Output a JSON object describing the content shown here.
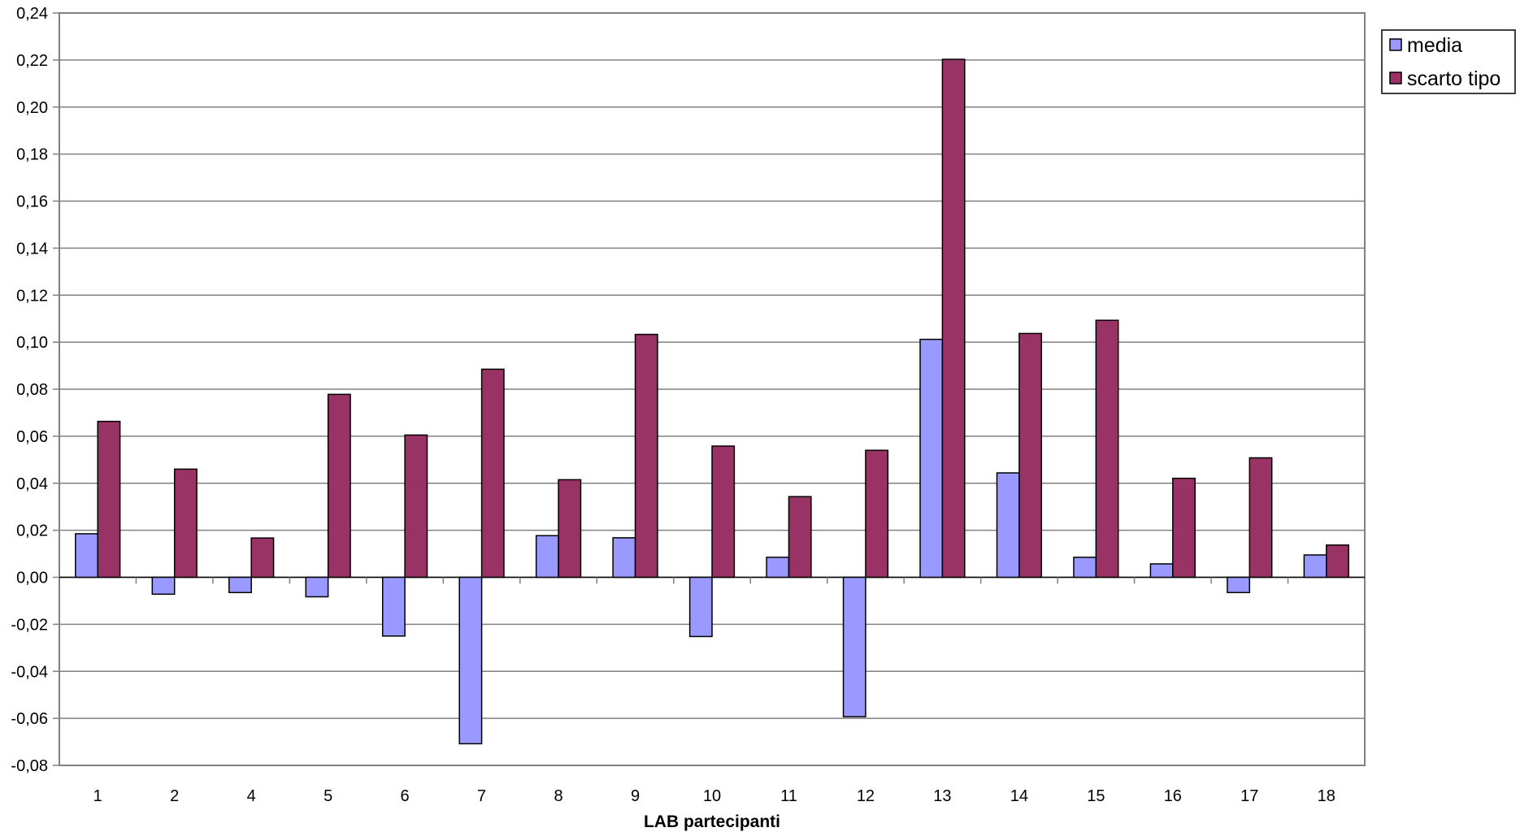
{
  "chart_data": {
    "type": "bar",
    "title": "",
    "xlabel": "LAB partecipanti",
    "ylabel": "",
    "categories": [
      "1",
      "2",
      "4",
      "5",
      "6",
      "7",
      "8",
      "9",
      "10",
      "11",
      "12",
      "13",
      "14",
      "15",
      "16",
      "17",
      "18"
    ],
    "series": [
      {
        "name": "media",
        "color": "#9999ff",
        "values": [
          0.0185,
          -0.0072,
          -0.0065,
          -0.0083,
          -0.025,
          -0.0708,
          0.0177,
          0.0168,
          -0.0252,
          0.0085,
          -0.0593,
          0.1012,
          0.0444,
          0.0085,
          0.0057,
          -0.0065,
          0.0095
        ]
      },
      {
        "name": "scarto tipo",
        "color": "#993366",
        "values": [
          0.0663,
          0.046,
          0.0167,
          0.0778,
          0.0605,
          0.0885,
          0.0415,
          0.1033,
          0.0558,
          0.0343,
          0.054,
          0.2203,
          0.1037,
          0.1093,
          0.0421,
          0.0508,
          0.0137
        ]
      }
    ],
    "ylim": [
      -0.08,
      0.24
    ],
    "yticks": [
      "-0,08",
      "-0,06",
      "-0,04",
      "-0,02",
      "0,00",
      "0,02",
      "0,04",
      "0,06",
      "0,08",
      "0,10",
      "0,12",
      "0,14",
      "0,16",
      "0,18",
      "0,20",
      "0,22",
      "0,24"
    ],
    "grid": true,
    "legend_position": "right-top"
  }
}
